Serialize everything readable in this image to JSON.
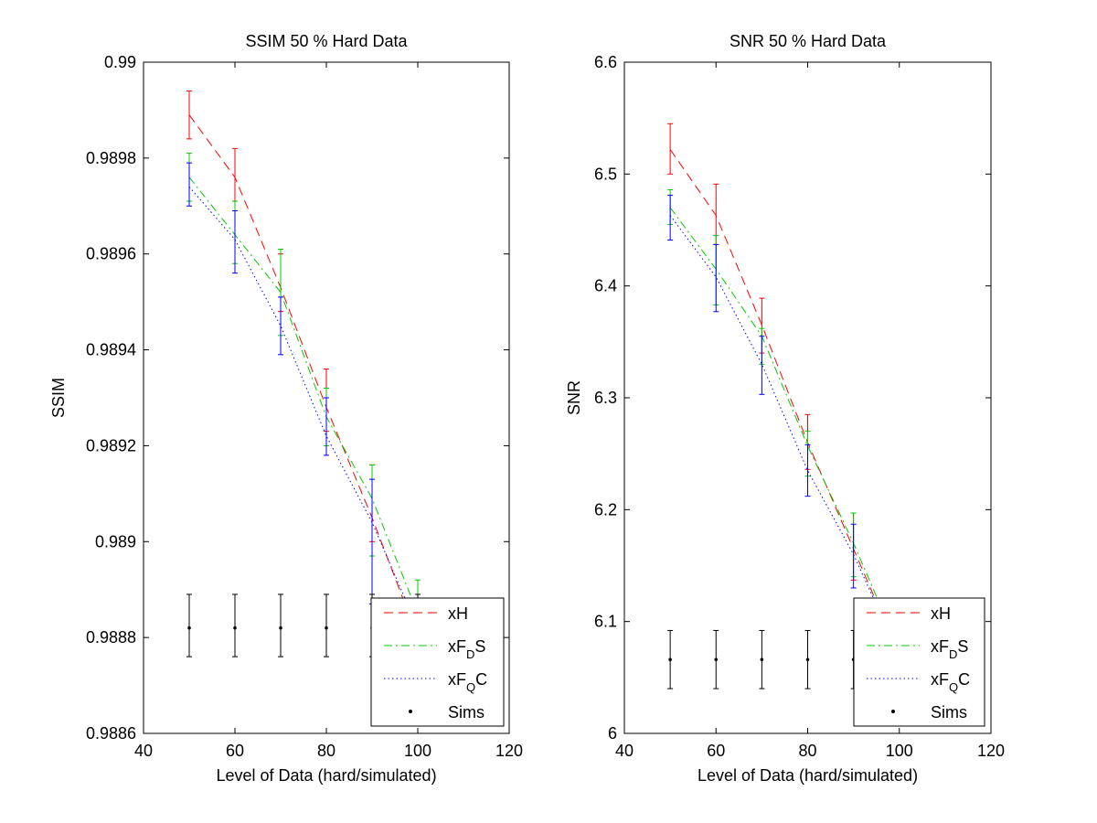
{
  "chart_data": [
    {
      "type": "line",
      "title": "SSIM 50 % Hard Data",
      "xlabel": "Level of Data (hard/simulated)",
      "ylabel": "SSIM",
      "xlim": [
        40,
        120
      ],
      "ylim": [
        0.9886,
        0.99
      ],
      "x_ticks": [
        40,
        60,
        80,
        100,
        120
      ],
      "y_ticks": [
        0.9886,
        0.9888,
        0.989,
        0.9892,
        0.9894,
        0.9896,
        0.9898,
        0.99
      ],
      "y_tick_labels": [
        "0.9886",
        "0.9888",
        "0.989",
        "0.9892",
        "0.9894",
        "0.9896",
        "0.9898",
        "0.99"
      ],
      "grid": false,
      "legend_position": "bottom-right",
      "series": [
        {
          "key": "xH",
          "color": "#ff0000",
          "dash": "dashed",
          "x": [
            50,
            60,
            70,
            80,
            90,
            100
          ],
          "y": [
            0.98989,
            0.98976,
            0.98953,
            0.98928,
            0.98905,
            0.9888
          ],
          "err_low": [
            0.98984,
            0.98971,
            0.98948,
            0.98923,
            0.989,
            0.98874
          ],
          "err_high": [
            0.98994,
            0.98982,
            0.9896,
            0.98936,
            0.98916,
            0.98886
          ]
        },
        {
          "key": "xFDS",
          "color": "#00cc00",
          "dash": "dashdot",
          "x": [
            50,
            60,
            70,
            80,
            90,
            100
          ],
          "y": [
            0.98976,
            0.98964,
            0.98952,
            0.98926,
            0.98909,
            0.98885
          ],
          "err_low": [
            0.98971,
            0.98958,
            0.98943,
            0.9892,
            0.98897,
            0.98878
          ],
          "err_high": [
            0.98981,
            0.98971,
            0.98961,
            0.98932,
            0.98916,
            0.98892
          ]
        },
        {
          "key": "xFQC",
          "color": "#0000ff",
          "dash": "dotted",
          "x": [
            50,
            60,
            70,
            80,
            90,
            100
          ],
          "y": [
            0.98974,
            0.98963,
            0.98945,
            0.98922,
            0.98904,
            0.98882
          ],
          "err_low": [
            0.9897,
            0.98956,
            0.98939,
            0.98918,
            0.98887,
            0.98878
          ],
          "err_high": [
            0.98979,
            0.98969,
            0.98951,
            0.9893,
            0.98913,
            0.98887
          ]
        },
        {
          "key": "Sims",
          "color": "#000000",
          "dash": "none",
          "x": [
            50,
            60,
            70,
            80,
            90,
            100
          ],
          "y": [
            0.98882,
            0.98882,
            0.98882,
            0.98882,
            0.98882,
            0.98882
          ],
          "err_low": [
            0.98876,
            0.98876,
            0.98876,
            0.98876,
            0.98876,
            0.98876
          ],
          "err_high": [
            0.98889,
            0.98889,
            0.98889,
            0.98889,
            0.98889,
            0.98889
          ]
        }
      ]
    },
    {
      "type": "line",
      "title": "SNR 50 % Hard Data",
      "xlabel": "Level of Data (hard/simulated)",
      "ylabel": "SNR",
      "xlim": [
        40,
        120
      ],
      "ylim": [
        6,
        6.6
      ],
      "x_ticks": [
        40,
        60,
        80,
        100,
        120
      ],
      "y_ticks": [
        6,
        6.1,
        6.2,
        6.3,
        6.4,
        6.5,
        6.6
      ],
      "y_tick_labels": [
        "6",
        "6.1",
        "6.2",
        "6.3",
        "6.4",
        "6.5",
        "6.6"
      ],
      "grid": false,
      "legend_position": "bottom-right",
      "series": [
        {
          "key": "xH",
          "color": "#ff0000",
          "dash": "dashed",
          "x": [
            50,
            60,
            70,
            80,
            90,
            100
          ],
          "y": [
            6.522,
            6.463,
            6.365,
            6.26,
            6.165,
            6.07
          ],
          "err_low": [
            6.5,
            6.437,
            6.34,
            6.236,
            6.137,
            6.045
          ],
          "err_high": [
            6.545,
            6.491,
            6.389,
            6.285,
            6.197,
            6.095
          ]
        },
        {
          "key": "xFDS",
          "color": "#00cc00",
          "dash": "dashdot",
          "x": [
            50,
            60,
            70,
            80,
            90,
            100
          ],
          "y": [
            6.47,
            6.415,
            6.355,
            6.257,
            6.17,
            6.075
          ],
          "err_low": [
            6.455,
            6.383,
            6.33,
            6.23,
            6.14,
            6.05
          ],
          "err_high": [
            6.486,
            6.445,
            6.362,
            6.27,
            6.197,
            6.1
          ]
        },
        {
          "key": "xFQC",
          "color": "#0000ff",
          "dash": "dotted",
          "x": [
            50,
            60,
            70,
            80,
            90,
            100
          ],
          "y": [
            6.463,
            6.408,
            6.33,
            6.235,
            6.16,
            6.07
          ],
          "err_low": [
            6.441,
            6.377,
            6.303,
            6.212,
            6.13,
            6.045
          ],
          "err_high": [
            6.481,
            6.437,
            6.355,
            6.258,
            6.187,
            6.095
          ]
        },
        {
          "key": "Sims",
          "color": "#000000",
          "dash": "none",
          "x": [
            50,
            60,
            70,
            80,
            90,
            100
          ],
          "y": [
            6.066,
            6.066,
            6.066,
            6.066,
            6.066,
            6.066
          ],
          "err_low": [
            6.04,
            6.04,
            6.04,
            6.04,
            6.04,
            6.04
          ],
          "err_high": [
            6.092,
            6.092,
            6.092,
            6.092,
            6.092,
            6.092
          ]
        }
      ]
    }
  ],
  "legend": {
    "entries": [
      {
        "key": "xH",
        "text": "xH",
        "main": "xH",
        "sub": "",
        "tail": ""
      },
      {
        "key": "xFDS",
        "text": "xFDS",
        "main": "xF",
        "sub": "D",
        "tail": "S"
      },
      {
        "key": "xFQC",
        "text": "xFQC",
        "main": "xF",
        "sub": "Q",
        "tail": "C"
      },
      {
        "key": "Sims",
        "text": "Sims",
        "main": "Sims",
        "sub": "",
        "tail": ""
      }
    ]
  }
}
